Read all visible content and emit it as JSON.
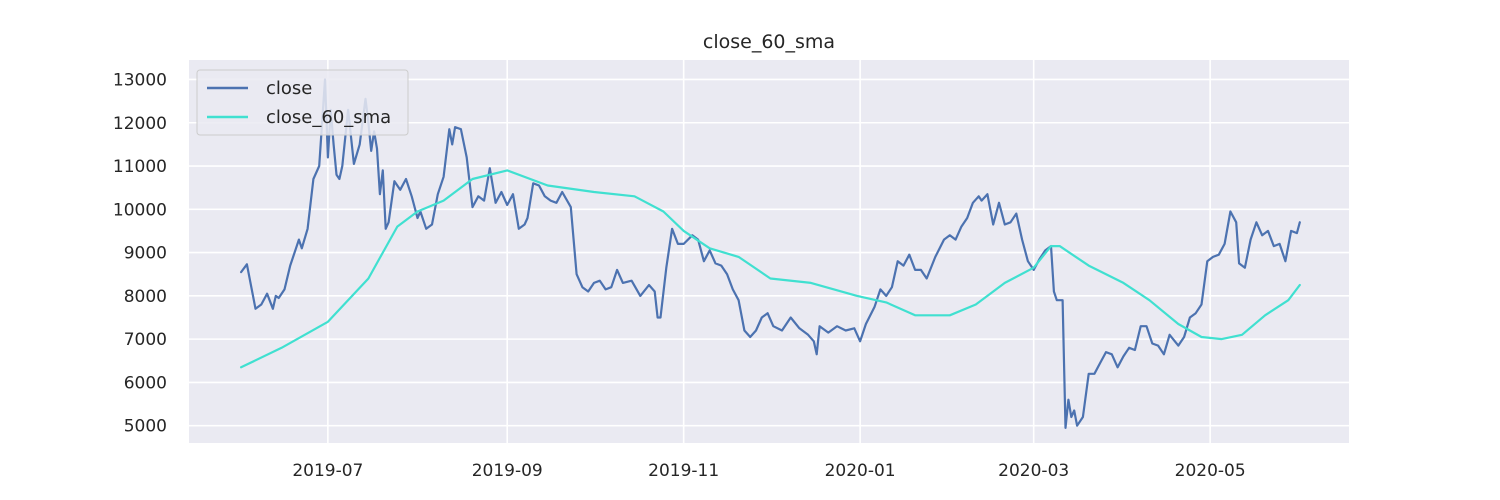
{
  "chart_data": {
    "type": "line",
    "title": "close_60_sma",
    "xlabel": "",
    "ylabel": "",
    "xlim": [
      "2019-05-14",
      "2020-06-18"
    ],
    "ylim": [
      4600,
      13450
    ],
    "grid": true,
    "legend_position": "top-left",
    "x_ticks": [
      "2019-07",
      "2019-09",
      "2019-11",
      "2020-01",
      "2020-03",
      "2020-05"
    ],
    "x_tick_dates": [
      "2019-07-01",
      "2019-09-01",
      "2019-11-01",
      "2020-01-01",
      "2020-03-01",
      "2020-05-01"
    ],
    "y_ticks": [
      5000,
      6000,
      7000,
      8000,
      9000,
      10000,
      11000,
      12000,
      13000
    ],
    "colors": {
      "background": "#eaeaf2",
      "grid": "#ffffff",
      "close": "#4c72b0",
      "sma": "#40e0d0"
    },
    "series": [
      {
        "name": "close",
        "color": "#4c72b0",
        "points": [
          [
            "2019-06-01",
            8550
          ],
          [
            "2019-06-03",
            8730
          ],
          [
            "2019-06-06",
            7700
          ],
          [
            "2019-06-08",
            7800
          ],
          [
            "2019-06-10",
            8050
          ],
          [
            "2019-06-12",
            7700
          ],
          [
            "2019-06-13",
            8000
          ],
          [
            "2019-06-14",
            7950
          ],
          [
            "2019-06-16",
            8150
          ],
          [
            "2019-06-18",
            8700
          ],
          [
            "2019-06-20",
            9100
          ],
          [
            "2019-06-21",
            9300
          ],
          [
            "2019-06-22",
            9100
          ],
          [
            "2019-06-24",
            9550
          ],
          [
            "2019-06-26",
            10700
          ],
          [
            "2019-06-28",
            11000
          ],
          [
            "2019-06-29",
            12000
          ],
          [
            "2019-06-30",
            13000
          ],
          [
            "2019-07-01",
            11200
          ],
          [
            "2019-07-02",
            12300
          ],
          [
            "2019-07-03",
            11500
          ],
          [
            "2019-07-04",
            10800
          ],
          [
            "2019-07-05",
            10700
          ],
          [
            "2019-07-06",
            11000
          ],
          [
            "2019-07-08",
            12300
          ],
          [
            "2019-07-10",
            11050
          ],
          [
            "2019-07-12",
            11500
          ],
          [
            "2019-07-14",
            12550
          ],
          [
            "2019-07-15",
            12000
          ],
          [
            "2019-07-16",
            11350
          ],
          [
            "2019-07-17",
            11800
          ],
          [
            "2019-07-18",
            11400
          ],
          [
            "2019-07-19",
            10350
          ],
          [
            "2019-07-20",
            10900
          ],
          [
            "2019-07-21",
            9550
          ],
          [
            "2019-07-22",
            9700
          ],
          [
            "2019-07-24",
            10650
          ],
          [
            "2019-07-26",
            10450
          ],
          [
            "2019-07-28",
            10700
          ],
          [
            "2019-07-30",
            10300
          ],
          [
            "2019-08-01",
            9800
          ],
          [
            "2019-08-02",
            9950
          ],
          [
            "2019-08-04",
            9550
          ],
          [
            "2019-08-06",
            9650
          ],
          [
            "2019-08-08",
            10350
          ],
          [
            "2019-08-10",
            10750
          ],
          [
            "2019-08-12",
            11850
          ],
          [
            "2019-08-13",
            11500
          ],
          [
            "2019-08-14",
            11900
          ],
          [
            "2019-08-16",
            11850
          ],
          [
            "2019-08-18",
            11200
          ],
          [
            "2019-08-20",
            10050
          ],
          [
            "2019-08-22",
            10300
          ],
          [
            "2019-08-24",
            10200
          ],
          [
            "2019-08-26",
            10950
          ],
          [
            "2019-08-28",
            10150
          ],
          [
            "2019-08-30",
            10400
          ],
          [
            "2019-09-01",
            10100
          ],
          [
            "2019-09-03",
            10350
          ],
          [
            "2019-09-05",
            9550
          ],
          [
            "2019-09-07",
            9650
          ],
          [
            "2019-09-08",
            9800
          ],
          [
            "2019-09-10",
            10600
          ],
          [
            "2019-09-12",
            10550
          ],
          [
            "2019-09-14",
            10300
          ],
          [
            "2019-09-16",
            10200
          ],
          [
            "2019-09-18",
            10150
          ],
          [
            "2019-09-20",
            10400
          ],
          [
            "2019-09-23",
            10050
          ],
          [
            "2019-09-25",
            8500
          ],
          [
            "2019-09-27",
            8200
          ],
          [
            "2019-09-29",
            8100
          ],
          [
            "2019-10-01",
            8300
          ],
          [
            "2019-10-03",
            8350
          ],
          [
            "2019-10-05",
            8150
          ],
          [
            "2019-10-07",
            8200
          ],
          [
            "2019-10-09",
            8600
          ],
          [
            "2019-10-11",
            8300
          ],
          [
            "2019-10-14",
            8350
          ],
          [
            "2019-10-17",
            8000
          ],
          [
            "2019-10-20",
            8250
          ],
          [
            "2019-10-22",
            8100
          ],
          [
            "2019-10-23",
            7500
          ],
          [
            "2019-10-24",
            7500
          ],
          [
            "2019-10-26",
            8650
          ],
          [
            "2019-10-28",
            9550
          ],
          [
            "2019-10-30",
            9200
          ],
          [
            "2019-11-01",
            9200
          ],
          [
            "2019-11-04",
            9400
          ],
          [
            "2019-11-06",
            9300
          ],
          [
            "2019-11-08",
            8800
          ],
          [
            "2019-11-10",
            9050
          ],
          [
            "2019-11-12",
            8750
          ],
          [
            "2019-11-14",
            8700
          ],
          [
            "2019-11-16",
            8500
          ],
          [
            "2019-11-18",
            8150
          ],
          [
            "2019-11-20",
            7900
          ],
          [
            "2019-11-22",
            7200
          ],
          [
            "2019-11-24",
            7050
          ],
          [
            "2019-11-26",
            7200
          ],
          [
            "2019-11-28",
            7500
          ],
          [
            "2019-11-30",
            7600
          ],
          [
            "2019-12-02",
            7300
          ],
          [
            "2019-12-05",
            7200
          ],
          [
            "2019-12-08",
            7500
          ],
          [
            "2019-12-11",
            7250
          ],
          [
            "2019-12-14",
            7100
          ],
          [
            "2019-12-16",
            6950
          ],
          [
            "2019-12-17",
            6650
          ],
          [
            "2019-12-18",
            7300
          ],
          [
            "2019-12-21",
            7150
          ],
          [
            "2019-12-24",
            7300
          ],
          [
            "2019-12-27",
            7200
          ],
          [
            "2019-12-30",
            7250
          ],
          [
            "2020-01-01",
            6950
          ],
          [
            "2020-01-03",
            7350
          ],
          [
            "2020-01-06",
            7750
          ],
          [
            "2020-01-08",
            8150
          ],
          [
            "2020-01-10",
            8000
          ],
          [
            "2020-01-12",
            8200
          ],
          [
            "2020-01-14",
            8800
          ],
          [
            "2020-01-16",
            8700
          ],
          [
            "2020-01-18",
            8950
          ],
          [
            "2020-01-20",
            8600
          ],
          [
            "2020-01-22",
            8600
          ],
          [
            "2020-01-24",
            8400
          ],
          [
            "2020-01-27",
            8900
          ],
          [
            "2020-01-30",
            9300
          ],
          [
            "2020-02-01",
            9400
          ],
          [
            "2020-02-03",
            9300
          ],
          [
            "2020-02-05",
            9600
          ],
          [
            "2020-02-07",
            9800
          ],
          [
            "2020-02-09",
            10150
          ],
          [
            "2020-02-11",
            10300
          ],
          [
            "2020-02-12",
            10200
          ],
          [
            "2020-02-14",
            10350
          ],
          [
            "2020-02-16",
            9650
          ],
          [
            "2020-02-18",
            10150
          ],
          [
            "2020-02-20",
            9650
          ],
          [
            "2020-02-22",
            9700
          ],
          [
            "2020-02-24",
            9900
          ],
          [
            "2020-02-26",
            9300
          ],
          [
            "2020-02-28",
            8800
          ],
          [
            "2020-03-01",
            8600
          ],
          [
            "2020-03-03",
            8850
          ],
          [
            "2020-03-05",
            9050
          ],
          [
            "2020-03-07",
            9150
          ],
          [
            "2020-03-08",
            8100
          ],
          [
            "2020-03-09",
            7900
          ],
          [
            "2020-03-11",
            7900
          ],
          [
            "2020-03-12",
            4950
          ],
          [
            "2020-03-13",
            5600
          ],
          [
            "2020-03-14",
            5200
          ],
          [
            "2020-03-15",
            5350
          ],
          [
            "2020-03-16",
            5000
          ],
          [
            "2020-03-18",
            5200
          ],
          [
            "2020-03-20",
            6200
          ],
          [
            "2020-03-22",
            6200
          ],
          [
            "2020-03-24",
            6450
          ],
          [
            "2020-03-26",
            6700
          ],
          [
            "2020-03-28",
            6650
          ],
          [
            "2020-03-30",
            6350
          ],
          [
            "2020-04-01",
            6600
          ],
          [
            "2020-04-03",
            6800
          ],
          [
            "2020-04-05",
            6750
          ],
          [
            "2020-04-07",
            7300
          ],
          [
            "2020-04-09",
            7300
          ],
          [
            "2020-04-11",
            6900
          ],
          [
            "2020-04-13",
            6850
          ],
          [
            "2020-04-15",
            6650
          ],
          [
            "2020-04-17",
            7100
          ],
          [
            "2020-04-20",
            6850
          ],
          [
            "2020-04-22",
            7050
          ],
          [
            "2020-04-24",
            7500
          ],
          [
            "2020-04-26",
            7600
          ],
          [
            "2020-04-28",
            7800
          ],
          [
            "2020-04-30",
            8800
          ],
          [
            "2020-05-02",
            8900
          ],
          [
            "2020-05-04",
            8950
          ],
          [
            "2020-05-06",
            9200
          ],
          [
            "2020-05-08",
            9950
          ],
          [
            "2020-05-10",
            9700
          ],
          [
            "2020-05-11",
            8750
          ],
          [
            "2020-05-13",
            8650
          ],
          [
            "2020-05-15",
            9300
          ],
          [
            "2020-05-17",
            9700
          ],
          [
            "2020-05-19",
            9400
          ],
          [
            "2020-05-21",
            9500
          ],
          [
            "2020-05-23",
            9150
          ],
          [
            "2020-05-25",
            9200
          ],
          [
            "2020-05-27",
            8800
          ],
          [
            "2020-05-29",
            9500
          ],
          [
            "2020-05-31",
            9450
          ],
          [
            "2020-06-01",
            9700
          ]
        ]
      },
      {
        "name": "close_60_sma",
        "color": "#40e0d0",
        "points": [
          [
            "2019-06-01",
            6350
          ],
          [
            "2019-06-15",
            6800
          ],
          [
            "2019-07-01",
            7400
          ],
          [
            "2019-07-15",
            8400
          ],
          [
            "2019-07-20",
            9000
          ],
          [
            "2019-07-25",
            9600
          ],
          [
            "2019-08-01",
            9950
          ],
          [
            "2019-08-10",
            10200
          ],
          [
            "2019-08-20",
            10700
          ],
          [
            "2019-09-01",
            10900
          ],
          [
            "2019-09-15",
            10550
          ],
          [
            "2019-10-01",
            10400
          ],
          [
            "2019-10-15",
            10300
          ],
          [
            "2019-10-25",
            9950
          ],
          [
            "2019-11-01",
            9500
          ],
          [
            "2019-11-10",
            9100
          ],
          [
            "2019-11-20",
            8900
          ],
          [
            "2019-12-01",
            8400
          ],
          [
            "2019-12-15",
            8300
          ],
          [
            "2019-12-31",
            8000
          ],
          [
            "2020-01-10",
            7850
          ],
          [
            "2020-01-20",
            7550
          ],
          [
            "2020-02-01",
            7550
          ],
          [
            "2020-02-10",
            7800
          ],
          [
            "2020-02-20",
            8300
          ],
          [
            "2020-03-01",
            8650
          ],
          [
            "2020-03-07",
            9150
          ],
          [
            "2020-03-10",
            9150
          ],
          [
            "2020-03-20",
            8700
          ],
          [
            "2020-04-01",
            8300
          ],
          [
            "2020-04-10",
            7900
          ],
          [
            "2020-04-20",
            7350
          ],
          [
            "2020-04-28",
            7050
          ],
          [
            "2020-05-05",
            7000
          ],
          [
            "2020-05-12",
            7100
          ],
          [
            "2020-05-20",
            7550
          ],
          [
            "2020-05-28",
            7900
          ],
          [
            "2020-06-01",
            8250
          ]
        ]
      }
    ]
  }
}
